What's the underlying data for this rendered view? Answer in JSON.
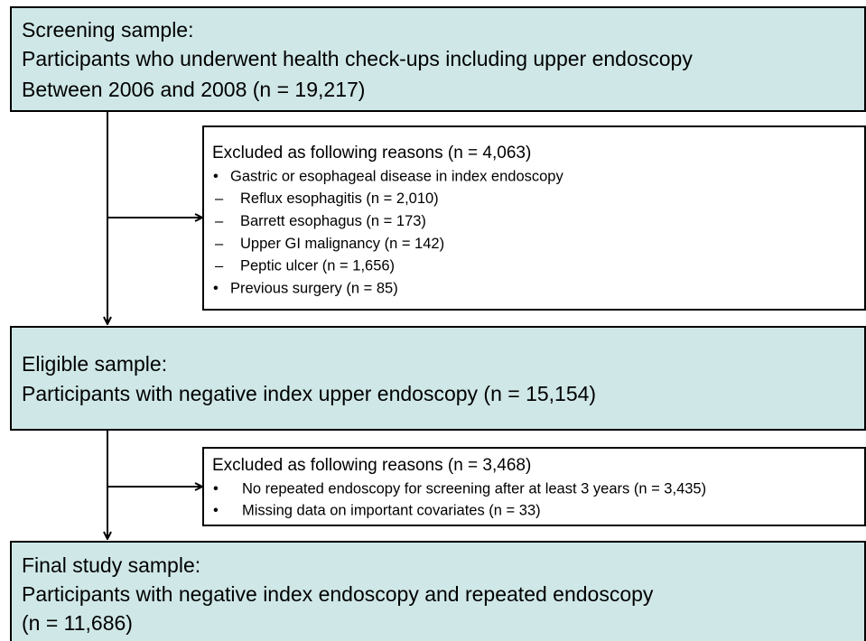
{
  "screening": {
    "heading": "Screening sample:",
    "lines": [
      "Participants who underwent health check-ups including upper endoscopy",
      "Between 2006 and 2008 (n = 19,217)"
    ]
  },
  "exclusion_1": {
    "heading": "Excluded as following reasons (n = 4,063)",
    "items": [
      {
        "marker": "•",
        "text": "Gastric or esophageal disease in index endoscopy"
      },
      {
        "marker": "–",
        "text": "Reflux esophagitis (n = 2,010)"
      },
      {
        "marker": "–",
        "text": "Barrett esophagus (n = 173)"
      },
      {
        "marker": "–",
        "text": "Upper GI malignancy (n = 142)"
      },
      {
        "marker": "–",
        "text": "Peptic ulcer (n = 1,656)"
      },
      {
        "marker": "•",
        "text": "Previous surgery (n = 85)"
      }
    ]
  },
  "eligible": {
    "heading": "Eligible sample:",
    "lines": [
      "Participants with negative index upper endoscopy (n = 15,154)"
    ]
  },
  "exclusion_2": {
    "heading": "Excluded as following reasons (n = 3,468)",
    "items": [
      {
        "marker": "•",
        "text": "No repeated endoscopy for screening after at least 3 years (n = 3,435)"
      },
      {
        "marker": "•",
        "text": "Missing data on important covariates (n = 33)"
      }
    ]
  },
  "final": {
    "heading": "Final study sample:",
    "lines": [
      "Participants with negative index endoscopy and repeated endoscopy",
      "(n = 11,686)"
    ]
  }
}
